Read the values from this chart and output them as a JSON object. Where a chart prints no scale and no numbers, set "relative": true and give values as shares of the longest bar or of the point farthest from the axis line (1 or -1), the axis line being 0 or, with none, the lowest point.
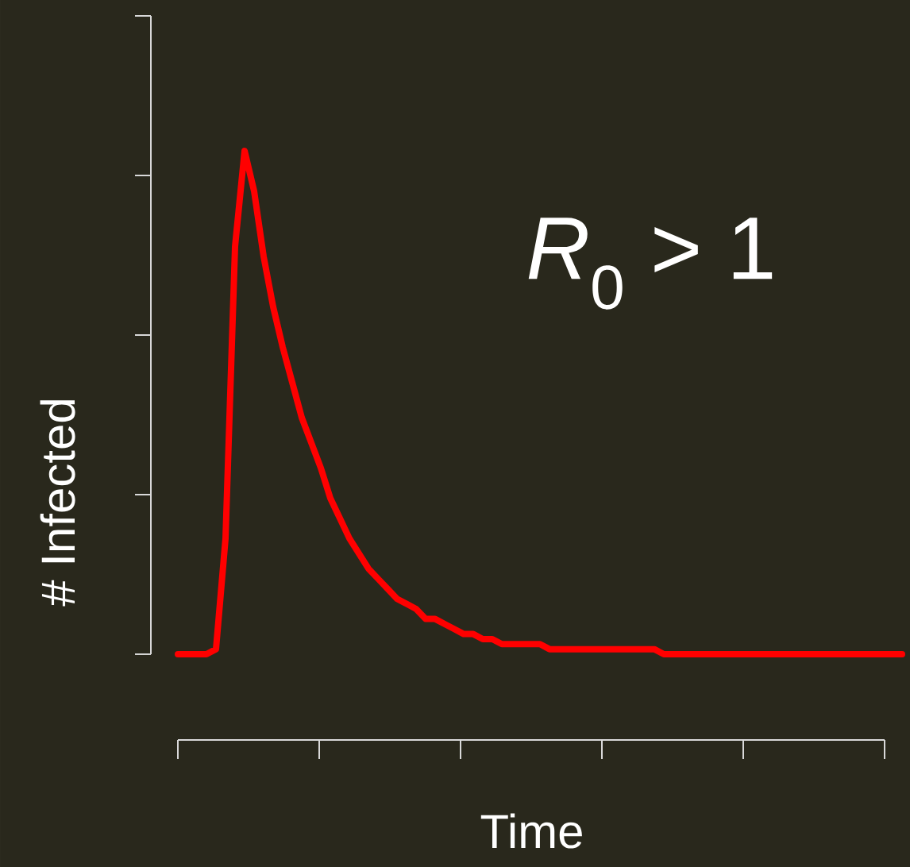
{
  "chart_data": {
    "type": "line",
    "relative": true,
    "xlabel": "Time",
    "ylabel": "# Infected",
    "annotations": [
      "*R*$_{0}$ > 1"
    ],
    "categories": [
      null,
      null,
      null,
      null,
      null,
      null,
      null,
      null,
      null,
      null,
      null,
      null,
      null,
      null,
      null,
      null,
      null,
      null,
      null,
      null,
      null,
      null,
      null,
      null,
      null,
      null,
      null,
      null,
      null,
      null,
      null,
      null,
      null,
      null,
      null,
      null,
      null,
      null,
      null,
      null,
      null,
      null,
      null,
      null,
      null,
      null,
      null,
      null,
      null,
      null,
      null,
      null,
      null,
      null,
      null,
      null,
      null,
      null,
      null,
      null,
      null,
      null,
      null,
      null,
      null,
      null,
      null,
      null,
      null,
      null,
      null,
      null,
      null,
      null,
      null,
      null,
      null
    ],
    "series": [
      {
        "color": "#ff0000",
        "values": [
          0,
          0,
          0,
          0,
          0.01,
          0.23,
          0.81,
          1,
          0.92,
          0.79,
          0.69,
          0.61,
          0.54,
          0.47,
          0.42,
          0.37,
          0.31,
          0.27,
          0.23,
          0.2,
          0.17,
          0.15,
          0.13,
          0.11,
          0.1,
          0.09,
          0.07,
          0.07,
          0.06,
          0.05,
          0.04,
          0.04,
          0.03,
          0.03,
          0.02,
          0.02,
          0.02,
          0.02,
          0.02,
          0.01,
          0.01,
          0.01,
          0.01,
          0.01,
          0.01,
          0.01,
          0.01,
          0.01,
          0.01,
          0.01,
          0.01,
          0,
          0,
          0,
          0,
          0,
          0,
          0,
          0,
          0,
          0,
          0,
          0,
          0,
          0,
          0,
          0,
          0,
          0,
          0,
          0,
          0,
          0,
          0,
          0,
          0,
          0
        ]
      }
    ]
  }
}
